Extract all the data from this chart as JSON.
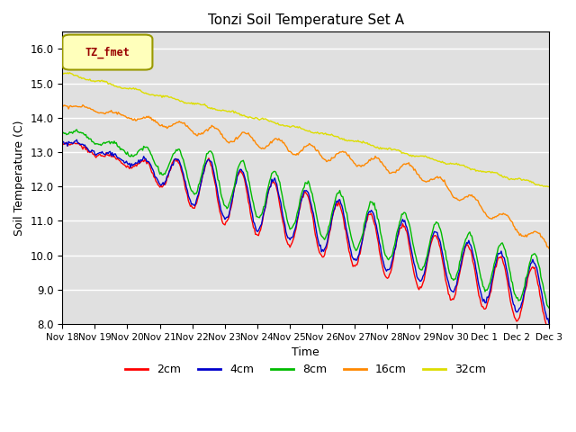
{
  "title": "Tonzi Soil Temperature Set A",
  "xlabel": "Time",
  "ylabel": "Soil Temperature (C)",
  "ylim": [
    8.0,
    16.5
  ],
  "yticks": [
    8.0,
    9.0,
    10.0,
    11.0,
    12.0,
    13.0,
    14.0,
    15.0,
    16.0
  ],
  "series_labels": [
    "2cm",
    "4cm",
    "8cm",
    "16cm",
    "32cm"
  ],
  "series_colors": [
    "#ff0000",
    "#0000cc",
    "#00bb00",
    "#ff8800",
    "#dddd00"
  ],
  "legend_label": "TZ_fmet",
  "bg_color": "#e0e0e0",
  "n_points": 480,
  "xtick_labels": [
    "Nov 18",
    "Nov 19",
    "Nov 20",
    "Nov 21",
    "Nov 22",
    "Nov 23",
    "Nov 24",
    "Nov 25",
    "Nov 26",
    "Nov 27",
    "Nov 28",
    "Nov 29",
    "Nov 30",
    "Dec 1",
    "Dec 2",
    "Dec 3"
  ]
}
